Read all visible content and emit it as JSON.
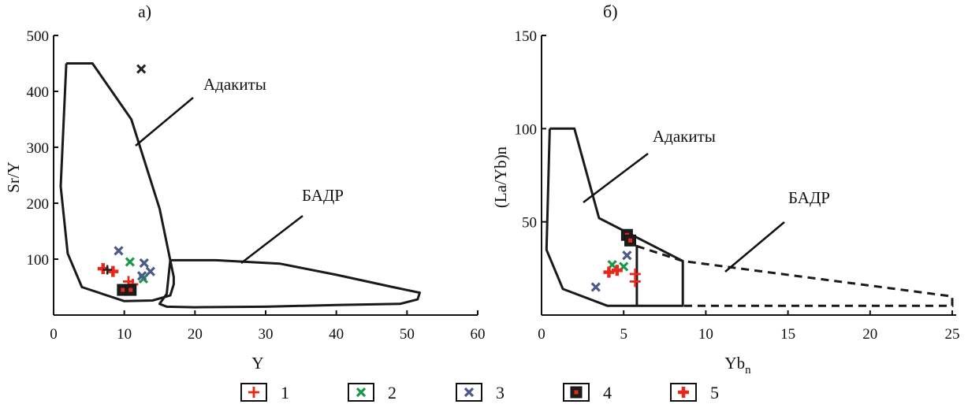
{
  "legend": [
    {
      "label": "1",
      "symbol": "plus",
      "color": "#e8281c"
    },
    {
      "label": "2",
      "symbol": "cross",
      "color": "#1a9a48"
    },
    {
      "label": "3",
      "symbol": "cross",
      "color": "#4a5a8a"
    },
    {
      "label": "4",
      "symbol": "box",
      "color": "#e8281c"
    },
    {
      "label": "5",
      "symbol": "boldplus",
      "color": "#e8281c"
    }
  ],
  "chart_data": [
    {
      "type": "scatter",
      "panel_label": "а)",
      "xlabel": "Y",
      "ylabel": "Sr/Y",
      "xlim": [
        0,
        60
      ],
      "ylim": [
        0,
        500
      ],
      "xticks": [
        0,
        10,
        20,
        30,
        40,
        50,
        60
      ],
      "yticks": [
        100,
        200,
        300,
        400,
        500
      ],
      "fields": [
        {
          "name": "Адакиты",
          "style": "solid",
          "outline": [
            [
              1.8,
              450
            ],
            [
              5.5,
              450
            ],
            [
              11,
              350
            ],
            [
              15,
              190
            ],
            [
              17,
              68
            ],
            [
              17,
              55
            ],
            [
              16.5,
              35
            ],
            [
              14,
              26
            ],
            [
              10,
              25
            ],
            [
              4,
              50
            ],
            [
              2,
              110
            ],
            [
              1,
              230
            ],
            [
              1.8,
              450
            ]
          ]
        },
        {
          "name": "БАДР",
          "style": "solid",
          "outline": [
            [
              16.5,
              98
            ],
            [
              23,
              98
            ],
            [
              32,
              92
            ],
            [
              40,
              72
            ],
            [
              48,
              50
            ],
            [
              51.8,
              40
            ],
            [
              51.5,
              28
            ],
            [
              49,
              20
            ],
            [
              40,
              18
            ],
            [
              30,
              15
            ],
            [
              20,
              14
            ],
            [
              16,
              15
            ],
            [
              15,
              20
            ],
            [
              16,
              38
            ],
            [
              16.5,
              98
            ]
          ]
        }
      ],
      "annotations": [
        {
          "text": "Адакиты",
          "field": "Адакиты"
        },
        {
          "text": "БАДР",
          "field": "БАДР"
        }
      ],
      "series": [
        {
          "name": "1",
          "points": [
            [
              10.6,
              60
            ],
            [
              11.2,
              55
            ]
          ]
        },
        {
          "name": "2",
          "points": [
            [
              10.8,
              95
            ],
            [
              12.7,
              65
            ]
          ]
        },
        {
          "name": "3",
          "points": [
            [
              9.2,
              115
            ],
            [
              12.8,
              93
            ],
            [
              13.7,
              78
            ],
            [
              12.5,
              70
            ]
          ]
        },
        {
          "name": "4",
          "points": [
            [
              9.8,
              45
            ],
            [
              10.9,
              45
            ]
          ]
        },
        {
          "name": "5",
          "points": [
            [
              7.0,
              83
            ],
            [
              8.4,
              78
            ]
          ]
        },
        {
          "name": "other",
          "points": [
            [
              12.4,
              440
            ]
          ]
        }
      ]
    },
    {
      "type": "scatter",
      "panel_label": "б)",
      "xlabel": "Yb",
      "xlabel_sub": "n",
      "ylabel": "(La/Yb)n",
      "xlim": [
        0,
        25
      ],
      "ylim": [
        0,
        150
      ],
      "xticks": [
        0,
        5,
        10,
        15,
        20,
        25
      ],
      "yticks": [
        50,
        100,
        150
      ],
      "fields": [
        {
          "name": "Адакиты",
          "style": "solid",
          "outline": [
            [
              0.5,
              100
            ],
            [
              2,
              100
            ],
            [
              3.5,
              52
            ],
            [
              8.6,
              29
            ],
            [
              8.6,
              5
            ],
            [
              5.8,
              5
            ],
            [
              5.8,
              37
            ],
            [
              5.8,
              5
            ],
            [
              4,
              5
            ],
            [
              1.3,
              14
            ],
            [
              0.3,
              35
            ],
            [
              0.5,
              100
            ]
          ]
        },
        {
          "name": "БАДР",
          "style": "dashed",
          "outline": [
            [
              5.8,
              37
            ],
            [
              8.6,
              29
            ],
            [
              25,
              10
            ],
            [
              25,
              5
            ],
            [
              8.6,
              5
            ]
          ]
        }
      ],
      "annotations": [
        {
          "text": "Адакиты",
          "field": "Адакиты"
        },
        {
          "text": "БАДР",
          "field": "БАДР"
        }
      ],
      "series": [
        {
          "name": "1",
          "points": [
            [
              5.7,
              22
            ],
            [
              5.7,
              18
            ]
          ]
        },
        {
          "name": "2",
          "points": [
            [
              4.3,
              27
            ],
            [
              5.0,
              26
            ]
          ]
        },
        {
          "name": "3",
          "points": [
            [
              3.3,
              15
            ],
            [
              5.2,
              32
            ]
          ]
        },
        {
          "name": "4",
          "points": [
            [
              5.2,
              43
            ],
            [
              5.4,
              40
            ]
          ]
        },
        {
          "name": "5",
          "points": [
            [
              4.1,
              23
            ],
            [
              4.6,
              24
            ]
          ]
        }
      ]
    }
  ]
}
